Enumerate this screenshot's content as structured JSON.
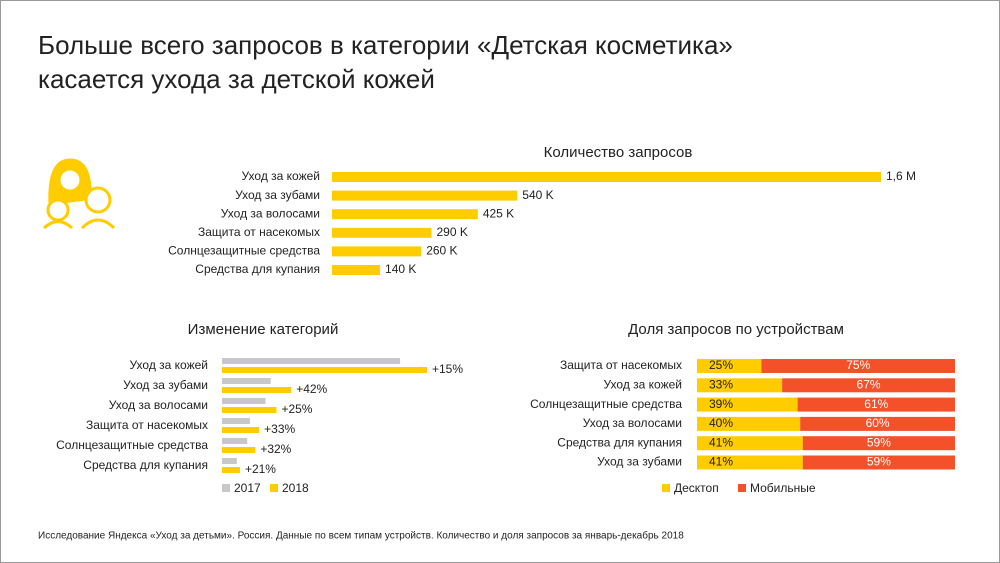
{
  "title": "Больше всего запросов в категории «Детская косметика» касается ухода за детской кожей",
  "footnote": "Исследование Яндекса «Уход за детьми». Россия. Данные по всем типам устройств. Количество и доля запросов за январь-декабрь 2018",
  "chart_data": [
    {
      "type": "bar",
      "title": "Количество запросов",
      "categories": [
        "Уход за кожей",
        "Уход за зубами",
        "Уход за волосами",
        "Защита от насекомых",
        "Солнцезащитные средства",
        "Средства для купания"
      ],
      "values": [
        1600000,
        540000,
        425000,
        290000,
        260000,
        140000
      ],
      "value_labels": [
        "1,6 M",
        "540 K",
        "425 K",
        "290 K",
        "260 K",
        "140 K"
      ],
      "color": "#ffcc00"
    },
    {
      "type": "grouped-bar",
      "title": "Изменение категорий",
      "categories": [
        "Уход за кожей",
        "Уход за зубами",
        "Уход за волосами",
        "Защита от насекомых",
        "Солнцезащитные средства",
        "Средства для купания"
      ],
      "series": [
        {
          "name": "2017",
          "color": "#c8c8c8",
          "values": [
            1390000,
            380000,
            340000,
            218000,
            197000,
            116000
          ]
        },
        {
          "name": "2018",
          "color": "#ffcc00",
          "values": [
            1600000,
            540000,
            425000,
            290000,
            260000,
            140000
          ]
        }
      ],
      "change_labels": [
        "+15%",
        "+42%",
        "+25%",
        "+33%",
        "+32%",
        "+21%"
      ]
    },
    {
      "type": "stacked-bar",
      "title": "Доля запросов по устройствам",
      "categories": [
        "Защита от насекомых",
        "Уход за кожей",
        "Солнцезащитные средства",
        "Уход за волосами",
        "Средства для купания",
        "Уход за зубами"
      ],
      "series": [
        {
          "name": "Десктоп",
          "color": "#ffcc00",
          "values": [
            25,
            33,
            39,
            40,
            41,
            41
          ],
          "value_labels": [
            "25%",
            "33%",
            "39%",
            "40%",
            "41%",
            "41%"
          ]
        },
        {
          "name": "Мобильные",
          "color": "#f4502a",
          "values": [
            75,
            67,
            61,
            60,
            59,
            59
          ],
          "value_labels": [
            "75%",
            "67%",
            "61%",
            "60%",
            "59%",
            "59%"
          ]
        }
      ]
    }
  ]
}
